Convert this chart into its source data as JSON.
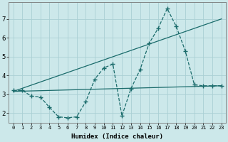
{
  "xlabel": "Humidex (Indice chaleur)",
  "background_color": "#cce8ea",
  "grid_color": "#aad0d4",
  "line_color": "#1a6b6b",
  "x_ticks": [
    0,
    1,
    2,
    3,
    4,
    5,
    6,
    7,
    8,
    9,
    10,
    11,
    12,
    13,
    14,
    15,
    16,
    17,
    18,
    19,
    20,
    21,
    22,
    23
  ],
  "xlim": [
    -0.5,
    23.5
  ],
  "ylim": [
    1.5,
    7.9
  ],
  "yticks": [
    2,
    3,
    4,
    5,
    6,
    7
  ],
  "series1_x": [
    0,
    1,
    2,
    3,
    4,
    5,
    6,
    7,
    8,
    9,
    10,
    11,
    12,
    13,
    14,
    15,
    16,
    17,
    18,
    19,
    20,
    21,
    22,
    23
  ],
  "series1_y": [
    3.2,
    3.2,
    2.9,
    2.85,
    2.3,
    1.8,
    1.75,
    1.8,
    2.6,
    3.8,
    4.4,
    4.6,
    1.85,
    3.3,
    4.3,
    5.7,
    6.5,
    7.55,
    6.6,
    5.3,
    3.5,
    3.45,
    3.45,
    3.45
  ],
  "series2_x": [
    0,
    23
  ],
  "series2_y": [
    3.15,
    3.45
  ],
  "series3_x": [
    0,
    23
  ],
  "series3_y": [
    3.15,
    7.0
  ]
}
